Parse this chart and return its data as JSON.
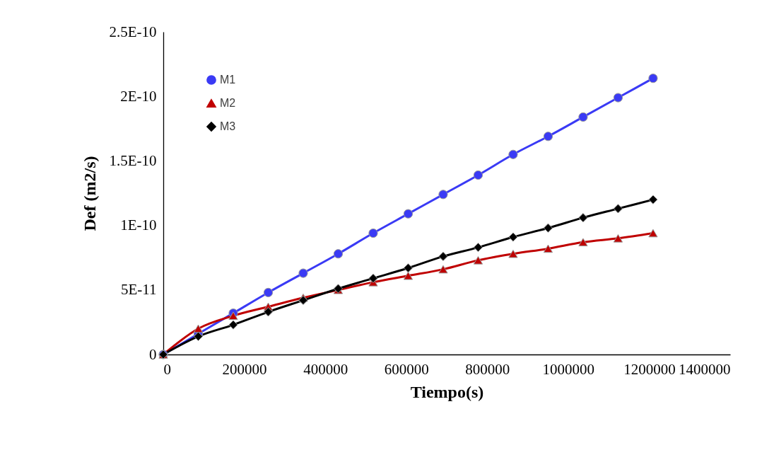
{
  "chart_data": {
    "type": "line",
    "xlabel": "Tiempo(s)",
    "ylabel": "Def (m2/s)",
    "x": [
      0,
      86400,
      172800,
      259200,
      345600,
      432000,
      518400,
      604800,
      691200,
      777600,
      864000,
      950400,
      1036800,
      1123200,
      1209600
    ],
    "series": [
      {
        "name": "M1",
        "color": "#3a3af5",
        "marker": "circle",
        "values": [
          0,
          1.6e-11,
          3.2e-11,
          4.8e-11,
          6.3e-11,
          7.8e-11,
          9.4e-11,
          1.09e-10,
          1.24e-10,
          1.39e-10,
          1.55e-10,
          1.69e-10,
          1.84e-10,
          1.99e-10,
          2.14e-10
        ]
      },
      {
        "name": "M2",
        "color": "#c00000",
        "marker": "triangle",
        "values": [
          0,
          2e-11,
          3e-11,
          3.7e-11,
          4.4e-11,
          5e-11,
          5.6e-11,
          6.1e-11,
          6.6e-11,
          7.3e-11,
          7.8e-11,
          8.2e-11,
          8.7e-11,
          9e-11,
          9.4e-11
        ]
      },
      {
        "name": "M3",
        "color": "#000000",
        "marker": "diamond",
        "values": [
          0,
          1.4e-11,
          2.3e-11,
          3.3e-11,
          4.2e-11,
          5.1e-11,
          5.9e-11,
          6.7e-11,
          7.6e-11,
          8.3e-11,
          9.1e-11,
          9.8e-11,
          1.06e-10,
          1.13e-10,
          1.2e-10
        ]
      }
    ],
    "xlim": [
      0,
      1400000
    ],
    "xticks": [
      0,
      200000,
      400000,
      600000,
      800000,
      1000000,
      1200000,
      1400000
    ],
    "ylim": [
      0,
      2.5e-10
    ],
    "yticks": [
      {
        "value": 0,
        "label": "0"
      },
      {
        "value": 5e-11,
        "label": "5E-11"
      },
      {
        "value": 1e-10,
        "label": "1E-10"
      },
      {
        "value": 1.5e-10,
        "label": "1.5E-10"
      },
      {
        "value": 2e-10,
        "label": "2E-10"
      },
      {
        "value": 2.5e-10,
        "label": "2.5E-10"
      }
    ],
    "legend": "top left",
    "grid": false,
    "line_style": "solid"
  }
}
